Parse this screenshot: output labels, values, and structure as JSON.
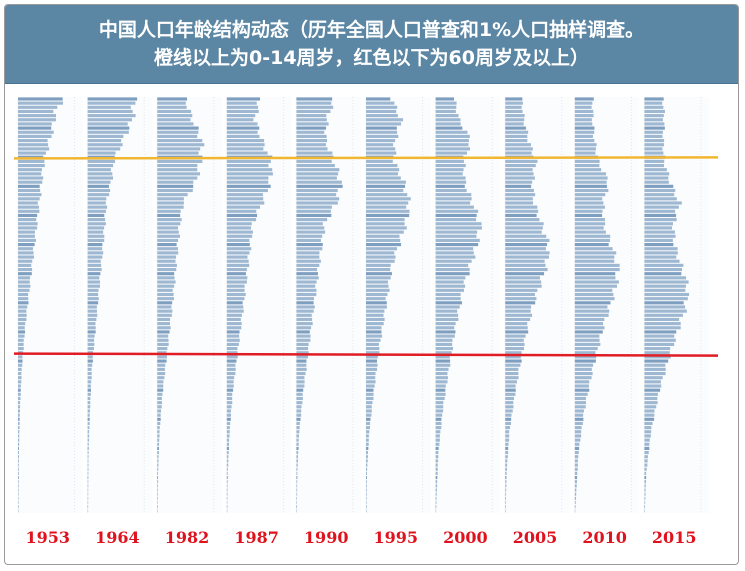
{
  "title": {
    "line1": "中国人口年龄结构动态（历年全国人口普查和1%人口抽样调查。",
    "line2": "橙线以上为0-14周岁，红色以下为60周岁及以上）"
  },
  "colors": {
    "header_bg": "#5b87a4",
    "bar": "#9fb8d2",
    "bar_dark": "#7f9fc0",
    "orange_line": "#f2b731",
    "red_line": "#e01d25",
    "year_label": "#e0121d"
  },
  "chart_data": {
    "type": "bar",
    "orientation": "horizontal",
    "value_unit": "share of population per single-year age (relative)",
    "age_groups": 100,
    "boundaries": {
      "orange_age": 15,
      "red_age": 60
    },
    "panels": [
      {
        "year": "1953",
        "profile": [
          [
            0,
            0.95
          ],
          [
            3,
            0.8
          ],
          [
            8,
            0.72
          ],
          [
            15,
            0.55
          ],
          [
            25,
            0.45
          ],
          [
            35,
            0.35
          ],
          [
            45,
            0.25
          ],
          [
            55,
            0.15
          ],
          [
            65,
            0.08
          ],
          [
            75,
            0.04
          ],
          [
            85,
            0.02
          ],
          [
            99,
            0.01
          ]
        ]
      },
      {
        "year": "1964",
        "profile": [
          [
            0,
            1.0
          ],
          [
            5,
            0.95
          ],
          [
            10,
            0.75
          ],
          [
            15,
            0.55
          ],
          [
            20,
            0.5
          ],
          [
            25,
            0.4
          ],
          [
            35,
            0.33
          ],
          [
            45,
            0.25
          ],
          [
            55,
            0.17
          ],
          [
            65,
            0.09
          ],
          [
            75,
            0.05
          ],
          [
            85,
            0.02
          ],
          [
            99,
            0.01
          ]
        ]
      },
      {
        "year": "1982",
        "profile": [
          [
            0,
            0.6
          ],
          [
            5,
            0.75
          ],
          [
            10,
            0.95
          ],
          [
            15,
            0.92
          ],
          [
            20,
            0.82
          ],
          [
            25,
            0.55
          ],
          [
            30,
            0.48
          ],
          [
            40,
            0.4
          ],
          [
            50,
            0.32
          ],
          [
            60,
            0.22
          ],
          [
            70,
            0.12
          ],
          [
            80,
            0.05
          ],
          [
            90,
            0.02
          ],
          [
            99,
            0.01
          ]
        ]
      },
      {
        "year": "1987",
        "profile": [
          [
            0,
            0.7
          ],
          [
            5,
            0.6
          ],
          [
            10,
            0.75
          ],
          [
            15,
            0.95
          ],
          [
            20,
            0.92
          ],
          [
            25,
            0.75
          ],
          [
            30,
            0.55
          ],
          [
            40,
            0.45
          ],
          [
            50,
            0.35
          ],
          [
            60,
            0.24
          ],
          [
            70,
            0.13
          ],
          [
            80,
            0.06
          ],
          [
            90,
            0.02
          ],
          [
            99,
            0.01
          ]
        ]
      },
      {
        "year": "1990",
        "profile": [
          [
            0,
            0.8
          ],
          [
            5,
            0.65
          ],
          [
            10,
            0.62
          ],
          [
            15,
            0.8
          ],
          [
            20,
            0.95
          ],
          [
            25,
            0.85
          ],
          [
            30,
            0.6
          ],
          [
            40,
            0.48
          ],
          [
            50,
            0.37
          ],
          [
            60,
            0.26
          ],
          [
            70,
            0.15
          ],
          [
            80,
            0.06
          ],
          [
            90,
            0.02
          ],
          [
            99,
            0.01
          ]
        ]
      },
      {
        "year": "1995",
        "profile": [
          [
            0,
            0.55
          ],
          [
            5,
            0.75
          ],
          [
            10,
            0.62
          ],
          [
            15,
            0.6
          ],
          [
            20,
            0.8
          ],
          [
            25,
            0.92
          ],
          [
            30,
            0.85
          ],
          [
            40,
            0.55
          ],
          [
            50,
            0.42
          ],
          [
            60,
            0.28
          ],
          [
            70,
            0.17
          ],
          [
            80,
            0.07
          ],
          [
            90,
            0.02
          ],
          [
            99,
            0.01
          ]
        ]
      },
      {
        "year": "2000",
        "profile": [
          [
            0,
            0.4
          ],
          [
            5,
            0.5
          ],
          [
            10,
            0.75
          ],
          [
            15,
            0.6
          ],
          [
            20,
            0.62
          ],
          [
            30,
            0.95
          ],
          [
            35,
            0.88
          ],
          [
            45,
            0.6
          ],
          [
            55,
            0.42
          ],
          [
            65,
            0.28
          ],
          [
            75,
            0.15
          ],
          [
            85,
            0.06
          ],
          [
            99,
            0.01
          ]
        ]
      },
      {
        "year": "2005",
        "profile": [
          [
            0,
            0.35
          ],
          [
            5,
            0.4
          ],
          [
            10,
            0.5
          ],
          [
            15,
            0.65
          ],
          [
            20,
            0.58
          ],
          [
            25,
            0.62
          ],
          [
            35,
            0.92
          ],
          [
            40,
            0.88
          ],
          [
            50,
            0.58
          ],
          [
            60,
            0.38
          ],
          [
            70,
            0.22
          ],
          [
            80,
            0.09
          ],
          [
            90,
            0.03
          ],
          [
            99,
            0.01
          ]
        ]
      },
      {
        "year": "2010",
        "profile": [
          [
            0,
            0.38
          ],
          [
            5,
            0.38
          ],
          [
            10,
            0.42
          ],
          [
            15,
            0.5
          ],
          [
            20,
            0.72
          ],
          [
            25,
            0.6
          ],
          [
            30,
            0.62
          ],
          [
            40,
            0.92
          ],
          [
            45,
            0.88
          ],
          [
            55,
            0.6
          ],
          [
            65,
            0.38
          ],
          [
            75,
            0.2
          ],
          [
            85,
            0.08
          ],
          [
            99,
            0.01
          ]
        ]
      },
      {
        "year": "2015",
        "profile": [
          [
            0,
            0.4
          ],
          [
            5,
            0.42
          ],
          [
            10,
            0.4
          ],
          [
            15,
            0.42
          ],
          [
            20,
            0.55
          ],
          [
            25,
            0.75
          ],
          [
            30,
            0.62
          ],
          [
            35,
            0.64
          ],
          [
            45,
            0.92
          ],
          [
            50,
            0.88
          ],
          [
            60,
            0.58
          ],
          [
            70,
            0.32
          ],
          [
            80,
            0.14
          ],
          [
            90,
            0.04
          ],
          [
            99,
            0.01
          ]
        ]
      }
    ]
  }
}
